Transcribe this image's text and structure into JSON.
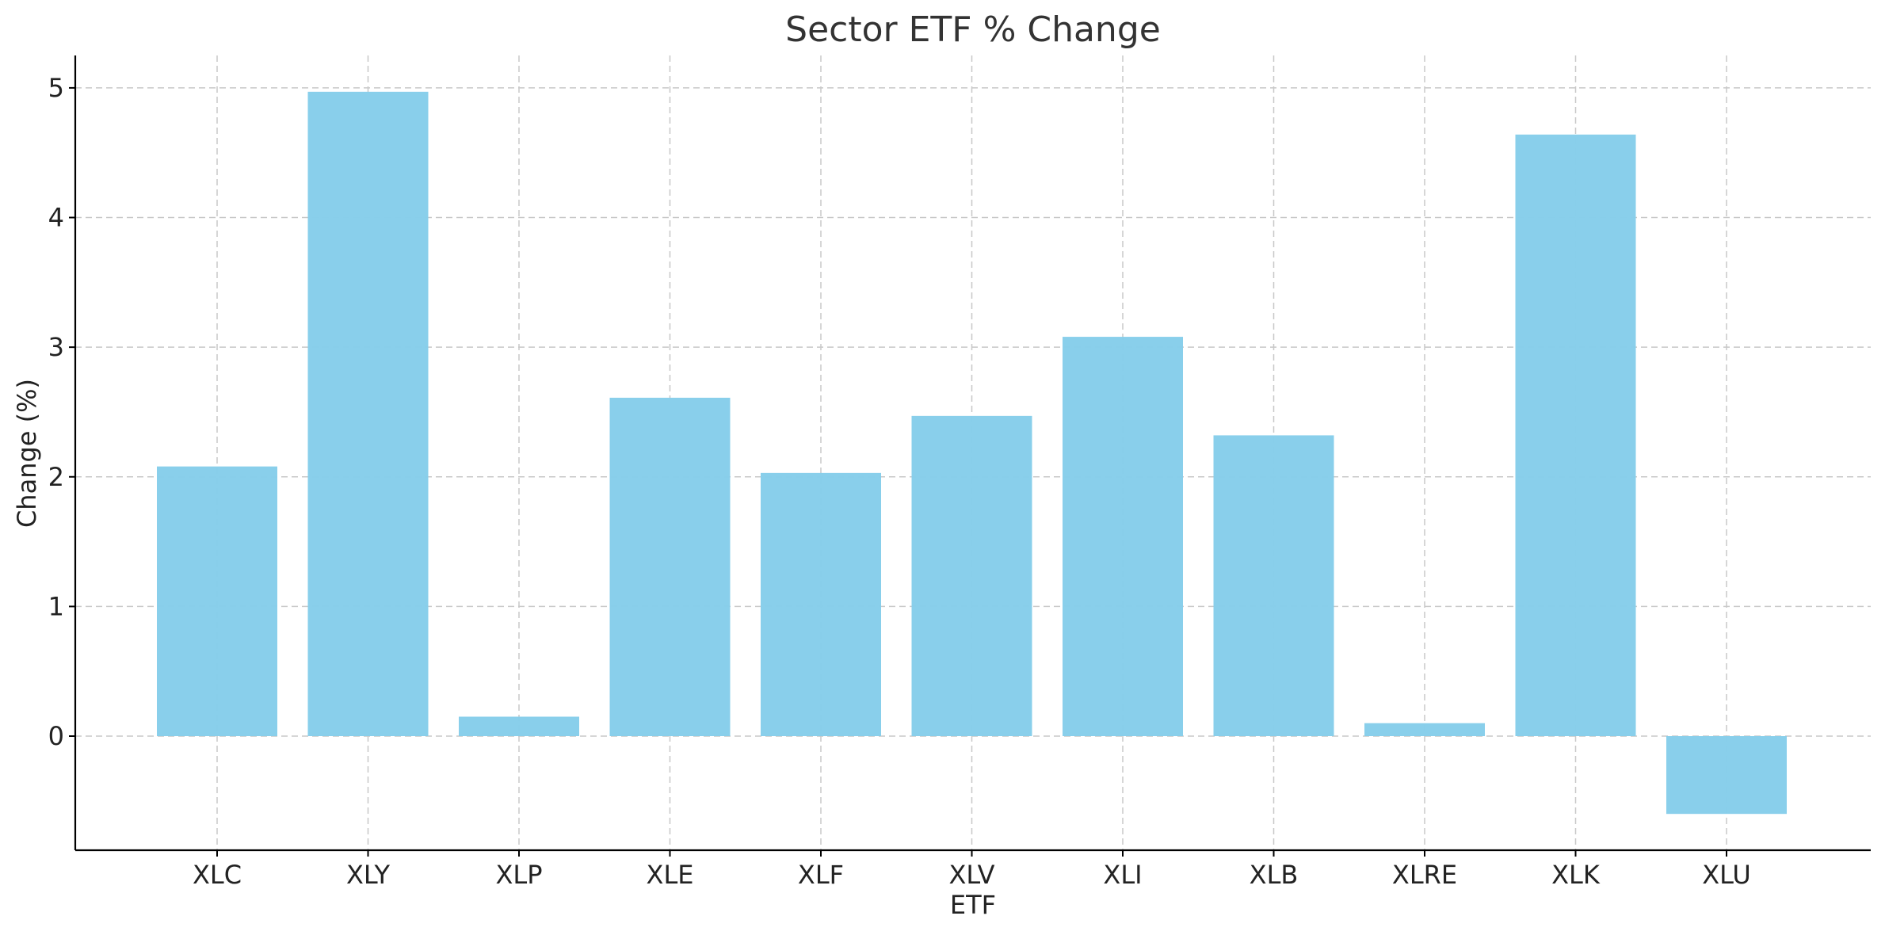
{
  "chart_data": {
    "type": "bar",
    "title": "Sector ETF % Change",
    "xlabel": "ETF",
    "ylabel": "Change (%)",
    "categories": [
      "XLC",
      "XLY",
      "XLP",
      "XLE",
      "XLF",
      "XLV",
      "XLI",
      "XLB",
      "XLRE",
      "XLK",
      "XLU"
    ],
    "values": [
      2.08,
      4.97,
      0.15,
      2.61,
      2.03,
      2.47,
      3.08,
      2.32,
      0.1,
      4.64,
      -0.6
    ],
    "ylim": [
      -0.88,
      5.25
    ],
    "yticks": [
      0,
      1,
      2,
      3,
      4,
      5
    ],
    "grid": true,
    "bar_color": "#87CEEB"
  }
}
